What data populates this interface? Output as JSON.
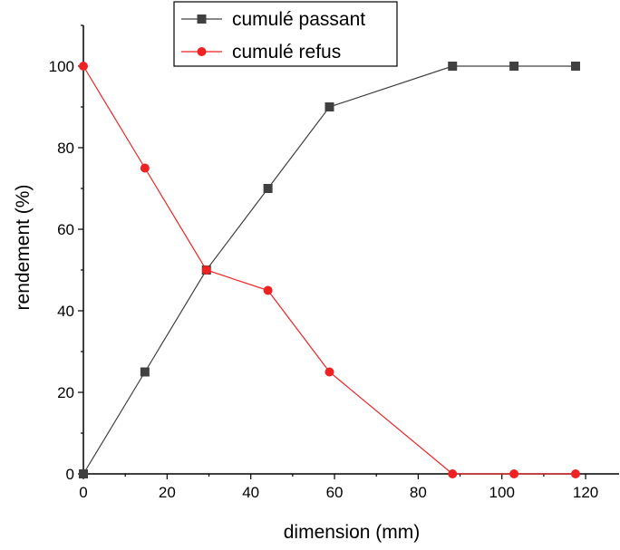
{
  "chart_data": {
    "type": "line",
    "xlabel": "dimension (mm)",
    "ylabel": "rendement (%)",
    "xlim": [
      0,
      128
    ],
    "ylim": [
      0,
      110
    ],
    "xticks": [
      0,
      20,
      40,
      60,
      80,
      100,
      120
    ],
    "yticks": [
      0,
      20,
      40,
      60,
      80,
      100
    ],
    "legend_position": "top",
    "series": [
      {
        "name": "cumulé passant",
        "marker": "square",
        "color": "#404040",
        "x": [
          0,
          14.7,
          29.4,
          44.1,
          58.8,
          88.2,
          102.9,
          117.6
        ],
        "values": [
          0,
          25,
          50,
          70,
          90,
          100,
          100,
          100
        ]
      },
      {
        "name": "cumulé refus",
        "marker": "circle",
        "color": "#ee2222",
        "x": [
          0,
          14.7,
          29.4,
          44.1,
          58.8,
          88.2,
          102.9,
          117.6
        ],
        "values": [
          100,
          75,
          50,
          45,
          25,
          0,
          0,
          0
        ]
      }
    ]
  }
}
